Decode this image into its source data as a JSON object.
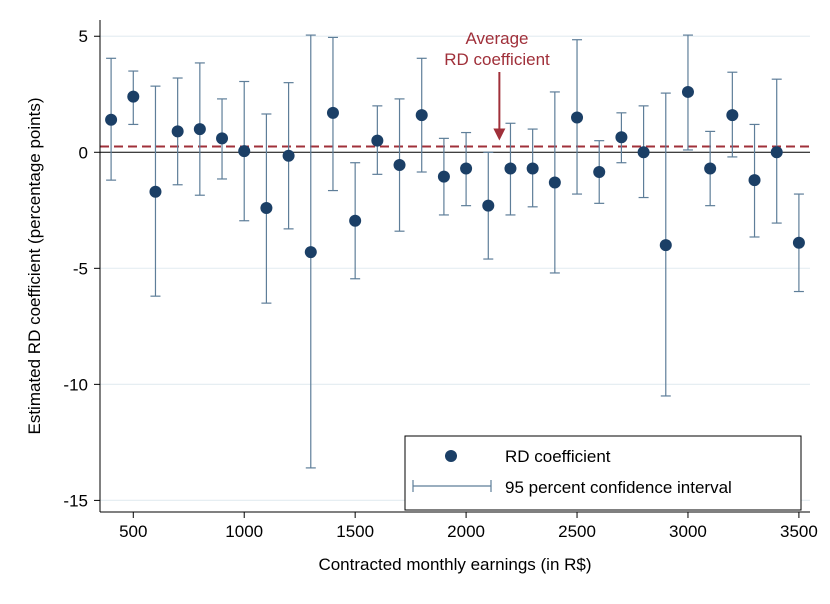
{
  "chart_data": {
    "type": "scatter",
    "xlabel": "Contracted monthly earnings (in R$)",
    "ylabel": "Estimated RD coefficient (percentage points)",
    "xlim": [
      350,
      3550
    ],
    "ylim": [
      -15.5,
      5.7
    ],
    "x_ticks": [
      500,
      1000,
      1500,
      2000,
      2500,
      3000,
      3500
    ],
    "y_ticks": [
      5,
      0,
      -5,
      -10,
      -15
    ],
    "x_tick_labels": [
      "500",
      "1000",
      "1500",
      "2000",
      "2500",
      "3000",
      "3500"
    ],
    "y_tick_labels": [
      "5",
      "0",
      "-5",
      "-10",
      "-15"
    ],
    "gridlines": "horizontal",
    "average_line": 0.25,
    "annotation": {
      "line1": "Average",
      "line2": "RD coefficient",
      "arrow_x": 2150
    },
    "series": [
      {
        "name": "RD coefficient",
        "x": [
          400,
          500,
          600,
          700,
          800,
          900,
          1000,
          1100,
          1200,
          1300,
          1400,
          1500,
          1600,
          1700,
          1800,
          1900,
          2000,
          2100,
          2200,
          2300,
          2400,
          2500,
          2600,
          2700,
          2800,
          2900,
          3000,
          3100,
          3200,
          3300,
          3400,
          3500
        ],
        "y": [
          1.4,
          2.4,
          -1.7,
          0.9,
          1.0,
          0.6,
          0.05,
          -2.4,
          -0.15,
          -4.3,
          1.7,
          -2.95,
          0.5,
          -0.55,
          1.6,
          -1.05,
          -0.7,
          -2.3,
          -0.7,
          -0.7,
          -1.3,
          1.5,
          -0.85,
          0.65,
          0.0,
          -4.0,
          2.6,
          -0.7,
          1.6,
          -1.2,
          0.0,
          -3.9
        ],
        "lower": [
          -1.2,
          1.2,
          -6.2,
          -1.4,
          -1.85,
          -1.15,
          -2.95,
          -6.5,
          -3.3,
          -13.6,
          -1.65,
          -5.45,
          -0.95,
          -3.4,
          -0.85,
          -2.7,
          -2.3,
          -4.6,
          -2.7,
          -2.35,
          -5.2,
          -1.8,
          -2.2,
          -0.45,
          -1.95,
          -10.5,
          0.1,
          -2.3,
          -0.2,
          -3.65,
          -3.05,
          -6.0
        ],
        "upper": [
          4.05,
          3.5,
          2.85,
          3.2,
          3.85,
          2.3,
          3.05,
          1.65,
          3.0,
          5.05,
          4.95,
          -0.45,
          2.0,
          2.3,
          4.05,
          0.6,
          0.85,
          0.0,
          1.25,
          1.0,
          2.6,
          4.85,
          0.5,
          1.7,
          2.0,
          2.55,
          5.05,
          0.9,
          3.45,
          1.2,
          3.15,
          -1.8
        ]
      }
    ],
    "legend": {
      "placement": "bottom-right",
      "entries": [
        "RD coefficient",
        "95 percent confidence interval"
      ]
    },
    "colors": {
      "marker": "#1b3f66",
      "ci": "#5e7e99",
      "average_line": "#a0303a",
      "annotation": "#a0303a",
      "grid": "#e6eef2"
    }
  }
}
